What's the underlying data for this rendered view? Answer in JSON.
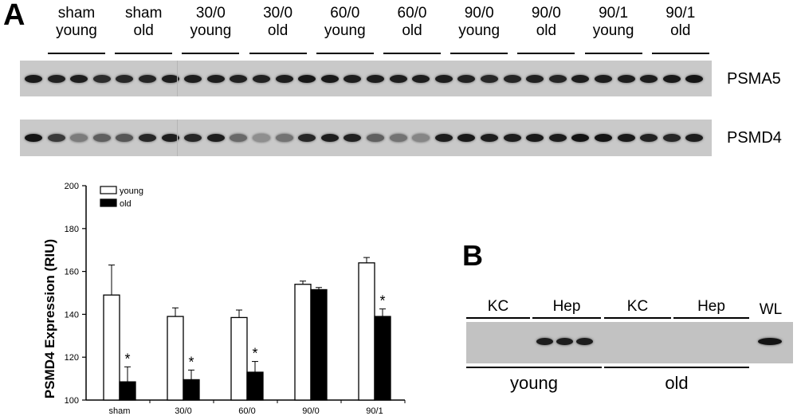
{
  "panel_a": {
    "label": "A",
    "lanes": [
      {
        "line1": "sham",
        "line2": "young"
      },
      {
        "line1": "sham",
        "line2": "old"
      },
      {
        "line1": "30/0",
        "line2": "young"
      },
      {
        "line1": "30/0",
        "line2": "old"
      },
      {
        "line1": "60/0",
        "line2": "young"
      },
      {
        "line1": "60/0",
        "line2": "old"
      },
      {
        "line1": "90/0",
        "line2": "young"
      },
      {
        "line1": "90/0",
        "line2": "old"
      },
      {
        "line1": "90/1",
        "line2": "young"
      },
      {
        "line1": "90/1",
        "line2": "old"
      }
    ],
    "blots": [
      {
        "name": "PSMA5",
        "intensities": [
          0.92,
          0.88,
          0.9,
          0.82,
          0.85,
          0.86,
          0.9,
          0.9,
          0.9,
          0.88,
          0.88,
          0.9,
          0.93,
          0.92,
          0.9,
          0.9,
          0.9,
          0.9,
          0.9,
          0.88,
          0.85,
          0.86,
          0.88,
          0.86,
          0.9,
          0.9,
          0.9,
          0.9,
          0.92,
          0.94
        ]
      },
      {
        "name": "PSMD4",
        "intensities": [
          0.95,
          0.75,
          0.4,
          0.55,
          0.6,
          0.85,
          0.9,
          0.85,
          0.9,
          0.5,
          0.3,
          0.45,
          0.85,
          0.9,
          0.88,
          0.55,
          0.45,
          0.35,
          0.9,
          0.92,
          0.9,
          0.9,
          0.92,
          0.9,
          0.95,
          0.95,
          0.92,
          0.88,
          0.85,
          0.9
        ]
      }
    ]
  },
  "chart_data": {
    "type": "bar",
    "ylabel": "PSMD4 Expression (RIU)",
    "xlabel": "",
    "ylim": [
      100,
      200
    ],
    "yticks": [
      100,
      120,
      140,
      160,
      180,
      200
    ],
    "categories": [
      "sham",
      "30/0",
      "60/0",
      "90/0",
      "90/1"
    ],
    "series": [
      {
        "name": "young",
        "color": "#ffffff",
        "values": [
          149,
          139,
          138.5,
          154,
          164
        ],
        "errors": [
          14,
          4,
          3.5,
          1.5,
          2.5
        ]
      },
      {
        "name": "old",
        "color": "#000000",
        "values": [
          108.5,
          109.5,
          113,
          151.5,
          139
        ],
        "errors": [
          7,
          4.5,
          5,
          1,
          3.5
        ]
      }
    ],
    "annotations": [
      "*",
      "*",
      "*",
      "",
      "*"
    ],
    "legend": "top-left"
  },
  "panel_b": {
    "label": "B",
    "lanes": [
      "KC",
      "Hep",
      "KC",
      "Hep",
      "WL"
    ],
    "groups": [
      "young",
      "old"
    ],
    "band_intensities": [
      0,
      0,
      0,
      0.9,
      0.9,
      0.9,
      0,
      0,
      0,
      0,
      0,
      0,
      0.95
    ]
  }
}
